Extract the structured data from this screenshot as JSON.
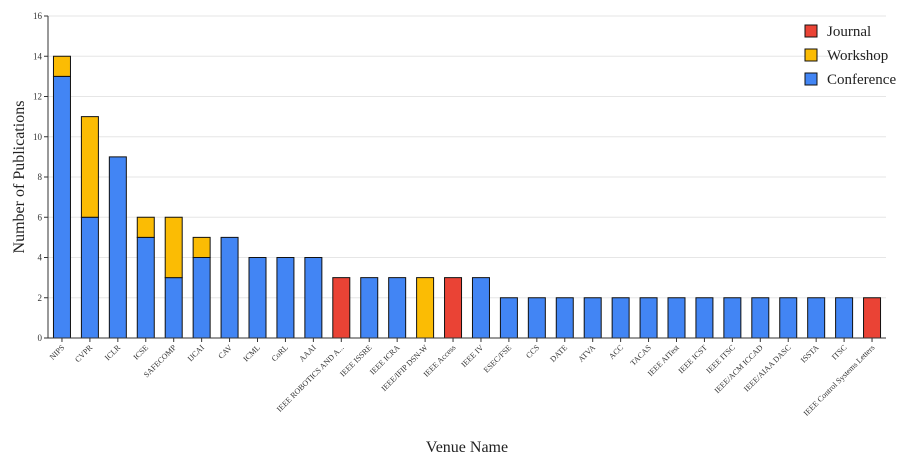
{
  "chart_data": {
    "type": "bar",
    "stacked": true,
    "xlabel": "Venue Name",
    "ylabel": "Number of Publications",
    "ylim": [
      0,
      16
    ],
    "yticks": [
      0,
      2,
      4,
      6,
      8,
      10,
      12,
      14,
      16
    ],
    "grid": true,
    "legend_position": "top-right",
    "categories": [
      "NIPS",
      "CVPR",
      "ICLR",
      "ICSE",
      "SAFECOMP",
      "IJCAI",
      "CAV",
      "ICML",
      "CoRL",
      "AAAI",
      "IEEE ROBOTICS AND A...",
      "IEEE ISSRE",
      "IEEE ICRA",
      "IEEE/IFIP DSN-W",
      "IEEE Access",
      "IEEE IV",
      "ESEC/FSE",
      "CCS",
      "DATE",
      "ATVA",
      "ACC",
      "TACAS",
      "IEEE AITest",
      "IEEE ICST",
      "IEEE ITSC",
      "IEEE/ACM ICCAD",
      "IEEE/AIAA DASC",
      "ISSTA",
      "ITSC",
      "IEEE Control Systems Letters"
    ],
    "series": [
      {
        "name": "Conference",
        "color": "#4285f4",
        "values": [
          13,
          6,
          9,
          5,
          3,
          4,
          5,
          4,
          4,
          4,
          0,
          3,
          3,
          0,
          0,
          3,
          2,
          2,
          2,
          2,
          2,
          2,
          2,
          2,
          2,
          2,
          2,
          2,
          2,
          0
        ]
      },
      {
        "name": "Workshop",
        "color": "#fbbc04",
        "values": [
          1,
          5,
          0,
          1,
          3,
          1,
          0,
          0,
          0,
          0,
          0,
          0,
          0,
          3,
          0,
          0,
          0,
          0,
          0,
          0,
          0,
          0,
          0,
          0,
          0,
          0,
          0,
          0,
          0,
          0
        ]
      },
      {
        "name": "Journal",
        "color": "#ea4335",
        "values": [
          0,
          0,
          0,
          0,
          0,
          0,
          0,
          0,
          0,
          0,
          3,
          0,
          0,
          0,
          3,
          0,
          0,
          0,
          0,
          0,
          0,
          0,
          0,
          0,
          0,
          0,
          0,
          0,
          0,
          2
        ]
      }
    ],
    "legend_order": [
      "Journal",
      "Workshop",
      "Conference"
    ]
  }
}
